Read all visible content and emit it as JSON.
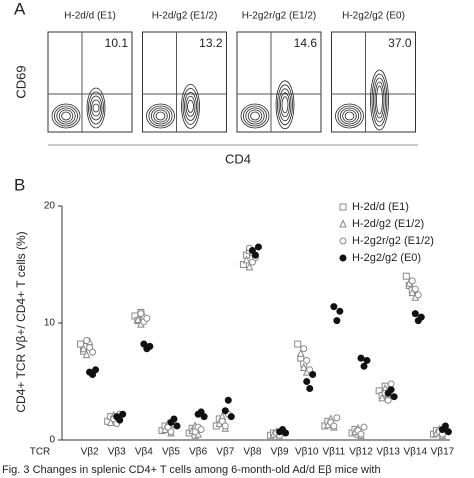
{
  "panel_a": {
    "label": "A",
    "plots": [
      {
        "title": "H-2d/d (E1)",
        "percent": "10.1"
      },
      {
        "title": "H-2d/g2 (E1/2)",
        "percent": "13.2"
      },
      {
        "title": "H-2g2r/g2 (E1/2)",
        "percent": "14.6"
      },
      {
        "title": "H-2g2/g2 (E0)",
        "percent": "37.0"
      }
    ],
    "y_label": "CD69",
    "x_label": "CD4"
  },
  "chart_data": {
    "type": "scatter",
    "panel_label": "B",
    "y_label": "CD4+ TCR Vβ+/ CD4+ T cells (%)",
    "x_prefix": "TCR",
    "categories": [
      "Vβ2",
      "Vβ3",
      "Vβ4",
      "Vβ5",
      "Vβ6",
      "Vβ7",
      "Vβ8",
      "Vβ9",
      "Vβ10",
      "Vβ11",
      "Vβ12",
      "Vβ13",
      "Vβ14",
      "Vβ17"
    ],
    "ylim": [
      0,
      20
    ],
    "yticks": [
      0,
      10,
      20
    ],
    "series": [
      {
        "name": "H-2d/d (E1)",
        "marker": "square",
        "color": "#888",
        "values": [
          [
            8.2,
            7.6,
            8.0
          ],
          [
            1.6,
            2.0,
            1.8
          ],
          [
            10.6,
            10.2,
            10.9
          ],
          [
            0.8,
            1.2,
            1.0
          ],
          [
            0.6,
            1.0,
            0.4
          ],
          [
            1.2,
            1.8,
            1.5
          ],
          [
            15.0,
            15.8,
            16.2
          ],
          [
            0.4,
            0.6,
            0.3
          ],
          [
            8.2,
            7.0,
            6.5
          ],
          [
            1.2,
            1.6,
            1.4
          ],
          [
            0.6,
            0.9,
            0.5
          ],
          [
            4.2,
            3.8,
            4.6
          ],
          [
            14.0,
            13.2,
            12.8
          ],
          [
            0.5,
            0.8,
            0.6
          ]
        ]
      },
      {
        "name": "H-2d/g2 (E1/2)",
        "marker": "triangle",
        "color": "#888",
        "values": [
          [
            7.8,
            7.3,
            8.4
          ],
          [
            1.5,
            2.1,
            1.7
          ],
          [
            10.3,
            9.9,
            10.6
          ],
          [
            0.9,
            1.4,
            0.6
          ],
          [
            0.8,
            1.2,
            0.5
          ],
          [
            1.4,
            2.0,
            1.0
          ],
          [
            15.4,
            14.8,
            16.0
          ],
          [
            0.5,
            0.7,
            0.3
          ],
          [
            7.4,
            6.2,
            5.8
          ],
          [
            1.3,
            1.8,
            1.1
          ],
          [
            0.7,
            1.0,
            0.4
          ],
          [
            3.6,
            4.4,
            3.9
          ],
          [
            13.4,
            12.6,
            12.2
          ],
          [
            0.6,
            0.9,
            0.4
          ]
        ]
      },
      {
        "name": "H-2g2r/g2 (E1/2)",
        "marker": "circle",
        "color": "#888",
        "values": [
          [
            8.5,
            7.9,
            7.5
          ],
          [
            1.8,
            1.4,
            2.2
          ],
          [
            10.8,
            10.1,
            10.4
          ],
          [
            1.1,
            0.7,
            1.3
          ],
          [
            0.7,
            1.1,
            0.9
          ],
          [
            1.6,
            1.2,
            2.2
          ],
          [
            16.4,
            15.2,
            15.6
          ],
          [
            0.6,
            0.4,
            0.8
          ],
          [
            7.8,
            6.8,
            6.0
          ],
          [
            1.5,
            1.2,
            1.9
          ],
          [
            0.8,
            0.5,
            1.1
          ],
          [
            4.0,
            3.4,
            4.8
          ],
          [
            13.6,
            12.9,
            12.4
          ],
          [
            0.7,
            0.5,
            1.0
          ]
        ]
      },
      {
        "name": "H-2g2/g2 (E0)",
        "marker": "filled",
        "color": "#111",
        "values": [
          [
            5.8,
            5.6,
            6.0
          ],
          [
            2.0,
            1.7,
            2.2
          ],
          [
            8.2,
            7.8,
            8.0
          ],
          [
            1.5,
            1.8,
            1.2
          ],
          [
            2.2,
            2.4,
            2.0
          ],
          [
            2.5,
            3.4,
            2.0
          ],
          [
            16.2,
            15.8,
            16.5
          ],
          [
            0.7,
            0.9,
            0.6
          ],
          [
            5.0,
            4.4,
            5.6
          ],
          [
            11.4,
            10.2,
            11.0
          ],
          [
            7.0,
            6.3,
            6.8
          ],
          [
            4.0,
            4.3,
            3.7
          ],
          [
            10.8,
            10.2,
            10.5
          ],
          [
            0.9,
            1.2,
            0.7
          ]
        ]
      }
    ]
  },
  "caption": "Fig. 3    Changes in splenic CD4+ T cells among 6-month-old Ad/d Eβ mice with"
}
